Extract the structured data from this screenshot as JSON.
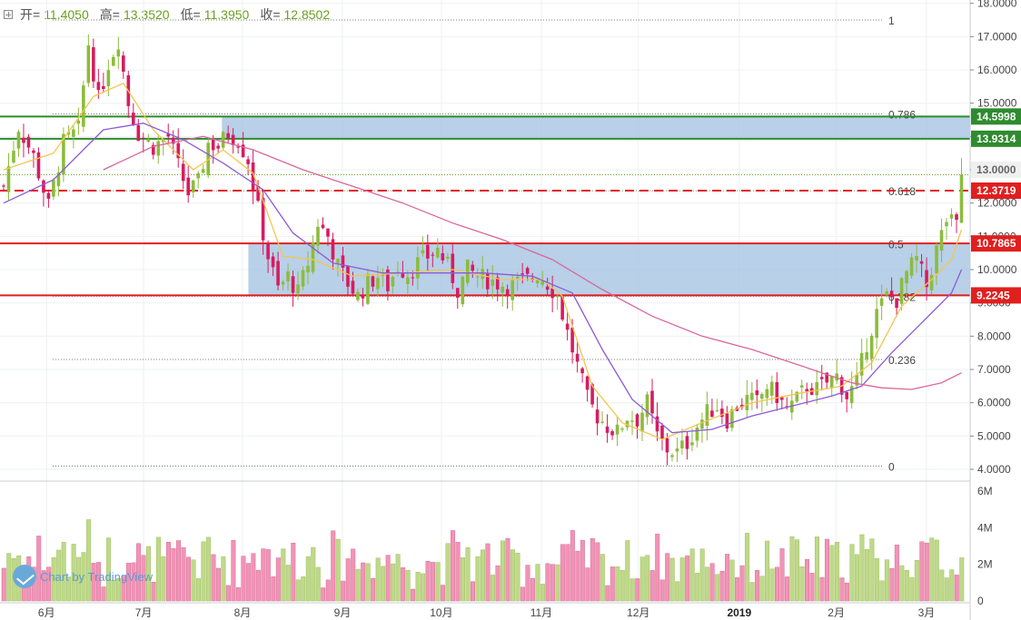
{
  "ohlc": {
    "open_label": "开=",
    "open": "11.4050",
    "high_label": "高=",
    "high": "13.3520",
    "low_label": "低=",
    "low": "11.3950",
    "close_label": "收=",
    "close": "12.8502"
  },
  "watermark": "Chart by TradingView",
  "colors": {
    "up": "#8cbc3c",
    "down": "#d81b60",
    "vol_up": "#bfd98a",
    "vol_down": "#f293b6",
    "ma_short": "#f3c64e",
    "ma_mid": "#8c5ad6",
    "ma_long": "#d9679a",
    "zone": "#a6c4e2",
    "res_green": "#2e8b2e",
    "res_red": "#e01f1f"
  },
  "chart_data": {
    "type": "candlestick",
    "price_axis": [
      "18.0000",
      "17.0000",
      "16.0000",
      "15.0000",
      "14.0000",
      "13.0000",
      "12.0000",
      "11.0000",
      "10.0000",
      "9.0000",
      "8.0000",
      "7.0000",
      "6.0000",
      "5.0000",
      "4.0000"
    ],
    "volume_axis": [
      "6M",
      "4M",
      "2M",
      "0"
    ],
    "x_labels": [
      "6月",
      "7月",
      "8月",
      "9月",
      "10月",
      "11月",
      "12月",
      "2019",
      "2月",
      "3月"
    ],
    "price_range": [
      3.7,
      18.1
    ],
    "volume_range": [
      0,
      6.2
    ],
    "price_tags": [
      {
        "value": 14.5998,
        "label": "14.5998",
        "color": "green"
      },
      {
        "value": 13.9314,
        "label": "13.9314",
        "color": "green"
      },
      {
        "value": 13.0,
        "label": "13.0000",
        "color": "gray"
      },
      {
        "value": 12.3719,
        "label": "12.3719",
        "color": "red"
      },
      {
        "value": 10.7865,
        "label": "10.7865",
        "color": "red"
      },
      {
        "value": 9.2245,
        "label": "9.2245",
        "color": "red"
      }
    ],
    "fib_levels": [
      {
        "label": "1",
        "value": 17.5
      },
      {
        "label": "0.786",
        "value": 14.68
      },
      {
        "label": "0.618",
        "value": 12.37
      },
      {
        "label": "0.5",
        "value": 10.78
      },
      {
        "label": "0.382",
        "value": 9.2
      },
      {
        "label": "0.236",
        "value": 7.3
      },
      {
        "label": "0",
        "value": 4.1
      }
    ],
    "zones": [
      {
        "x0": 0.21,
        "x1": 1.0,
        "y0": 13.93,
        "y1": 14.6
      },
      {
        "x0": 0.256,
        "x1": 1.0,
        "y0": 9.22,
        "y1": 10.79
      }
    ],
    "horizontal_lines": [
      {
        "value": 14.5998,
        "style": "solid",
        "color": "green"
      },
      {
        "value": 13.9314,
        "style": "solid",
        "color": "green"
      },
      {
        "value": 12.3719,
        "style": "dashed",
        "color": "red"
      },
      {
        "value": 10.7865,
        "style": "solid",
        "color": "red"
      },
      {
        "value": 9.2245,
        "style": "solid",
        "color": "red"
      },
      {
        "value": 12.85,
        "style": "dotted",
        "color": "green"
      }
    ],
    "close_path": [
      [
        0,
        12.5
      ],
      [
        3,
        14.3
      ],
      [
        6,
        13.4
      ],
      [
        9,
        11.9
      ],
      [
        12,
        13.8
      ],
      [
        15,
        14.2
      ],
      [
        17,
        16.8
      ],
      [
        19,
        15.1
      ],
      [
        21,
        16.2
      ],
      [
        23,
        16.9
      ],
      [
        25,
        15.0
      ],
      [
        27,
        14.1
      ],
      [
        30,
        13.7
      ],
      [
        33,
        14.0
      ],
      [
        35,
        13.1
      ],
      [
        37,
        12.3
      ],
      [
        39,
        12.6
      ],
      [
        41,
        13.8
      ],
      [
        43,
        13.7
      ],
      [
        45,
        14.1
      ],
      [
        47,
        13.9
      ],
      [
        49,
        13.3
      ],
      [
        51,
        11.8
      ],
      [
        53,
        10.4
      ],
      [
        55,
        9.4
      ],
      [
        57,
        9.8
      ],
      [
        59,
        9.3
      ],
      [
        61,
        10.2
      ],
      [
        63,
        11.4
      ],
      [
        65,
        11.0
      ],
      [
        67,
        10.1
      ],
      [
        69,
        9.6
      ],
      [
        71,
        9.2
      ],
      [
        73,
        9.6
      ],
      [
        75,
        9.8
      ],
      [
        77,
        9.5
      ],
      [
        79,
        10.1
      ],
      [
        81,
        9.9
      ],
      [
        83,
        10.2
      ],
      [
        85,
        10.4
      ],
      [
        87,
        10.6
      ],
      [
        89,
        10.1
      ],
      [
        91,
        9.4
      ],
      [
        93,
        10.0
      ],
      [
        95,
        9.8
      ],
      [
        97,
        9.7
      ],
      [
        99,
        9.6
      ],
      [
        101,
        9.5
      ],
      [
        103,
        9.6
      ],
      [
        105,
        9.7
      ],
      [
        107,
        9.9
      ],
      [
        109,
        9.6
      ],
      [
        111,
        9.2
      ],
      [
        113,
        8.1
      ],
      [
        115,
        7.1
      ],
      [
        117,
        6.1
      ],
      [
        119,
        5.6
      ],
      [
        121,
        5.3
      ],
      [
        123,
        5.1
      ],
      [
        125,
        5.6
      ],
      [
        127,
        5.5
      ],
      [
        129,
        6.0
      ],
      [
        131,
        5.0
      ],
      [
        133,
        4.6
      ],
      [
        135,
        4.5
      ],
      [
        137,
        4.8
      ],
      [
        139,
        5.3
      ],
      [
        141,
        5.7
      ],
      [
        143,
        5.9
      ],
      [
        145,
        5.5
      ],
      [
        147,
        5.9
      ],
      [
        149,
        6.1
      ],
      [
        151,
        6.0
      ],
      [
        153,
        6.5
      ],
      [
        155,
        6.2
      ],
      [
        157,
        5.8
      ],
      [
        159,
        6.1
      ],
      [
        161,
        6.5
      ],
      [
        163,
        6.4
      ],
      [
        165,
        6.6
      ],
      [
        167,
        6.8
      ],
      [
        169,
        6.2
      ],
      [
        171,
        6.6
      ],
      [
        173,
        7.8
      ],
      [
        175,
        8.7
      ],
      [
        177,
        9.2
      ],
      [
        179,
        9.1
      ],
      [
        181,
        9.9
      ],
      [
        183,
        10.3
      ],
      [
        185,
        9.5
      ],
      [
        187,
        10.6
      ],
      [
        189,
        11.5
      ],
      [
        191,
        11.3
      ],
      [
        192,
        12.85
      ]
    ],
    "ma_short": [
      [
        0,
        13.0
      ],
      [
        10,
        13.5
      ],
      [
        18,
        15.2
      ],
      [
        24,
        15.6
      ],
      [
        30,
        14.2
      ],
      [
        38,
        13.0
      ],
      [
        44,
        13.6
      ],
      [
        50,
        12.9
      ],
      [
        56,
        10.4
      ],
      [
        62,
        10.3
      ],
      [
        70,
        9.8
      ],
      [
        80,
        9.9
      ],
      [
        90,
        10.0
      ],
      [
        100,
        9.7
      ],
      [
        108,
        9.7
      ],
      [
        112,
        9.2
      ],
      [
        118,
        6.5
      ],
      [
        124,
        5.4
      ],
      [
        132,
        4.9
      ],
      [
        140,
        5.4
      ],
      [
        150,
        6.0
      ],
      [
        160,
        6.3
      ],
      [
        168,
        6.5
      ],
      [
        174,
        7.2
      ],
      [
        180,
        8.9
      ],
      [
        186,
        9.7
      ],
      [
        190,
        10.3
      ],
      [
        192,
        11.2
      ]
    ],
    "ma_mid": [
      [
        0,
        12.0
      ],
      [
        10,
        12.7
      ],
      [
        20,
        14.2
      ],
      [
        28,
        14.4
      ],
      [
        36,
        13.9
      ],
      [
        44,
        13.2
      ],
      [
        52,
        12.4
      ],
      [
        58,
        11.1
      ],
      [
        66,
        10.2
      ],
      [
        76,
        9.9
      ],
      [
        86,
        9.9
      ],
      [
        96,
        9.9
      ],
      [
        106,
        9.8
      ],
      [
        114,
        9.3
      ],
      [
        120,
        7.6
      ],
      [
        126,
        6.1
      ],
      [
        134,
        5.1
      ],
      [
        142,
        5.2
      ],
      [
        150,
        5.6
      ],
      [
        158,
        5.9
      ],
      [
        166,
        6.2
      ],
      [
        172,
        6.5
      ],
      [
        178,
        7.5
      ],
      [
        184,
        8.4
      ],
      [
        190,
        9.3
      ],
      [
        192,
        10.0
      ]
    ],
    "ma_long": [
      [
        20,
        13.0
      ],
      [
        30,
        13.7
      ],
      [
        40,
        14.0
      ],
      [
        50,
        13.6
      ],
      [
        60,
        13.0
      ],
      [
        70,
        12.5
      ],
      [
        80,
        12.0
      ],
      [
        90,
        11.4
      ],
      [
        100,
        10.9
      ],
      [
        110,
        10.3
      ],
      [
        120,
        9.4
      ],
      [
        130,
        8.6
      ],
      [
        140,
        8.0
      ],
      [
        150,
        7.6
      ],
      [
        160,
        7.1
      ],
      [
        170,
        6.6
      ],
      [
        176,
        6.45
      ],
      [
        182,
        6.4
      ],
      [
        188,
        6.6
      ],
      [
        192,
        6.9
      ]
    ],
    "volume_bars": 192,
    "candles": 193
  }
}
